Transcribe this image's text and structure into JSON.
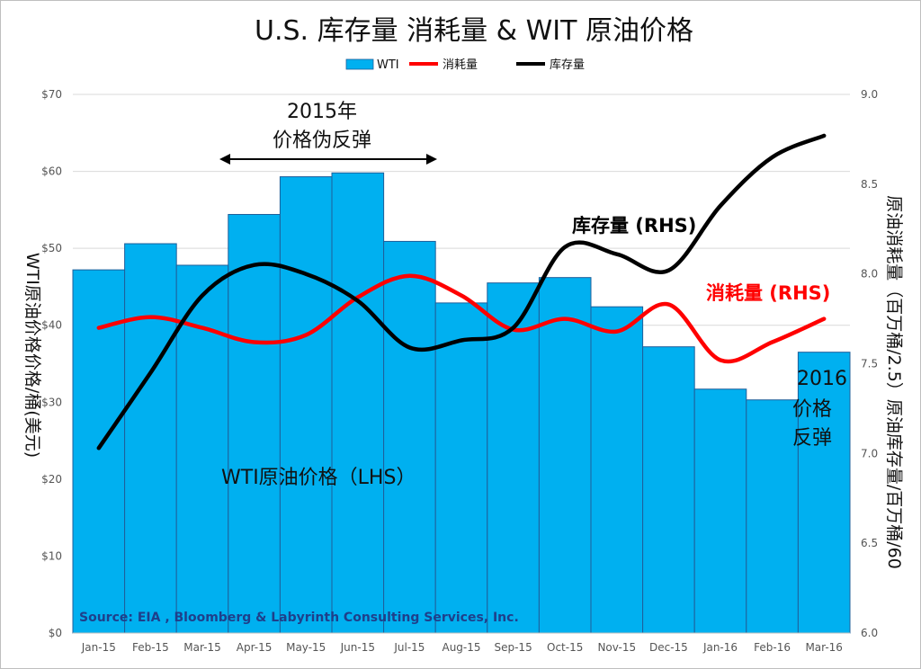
{
  "chart_data": {
    "type": "bar",
    "title": "U.S. 库存量   消耗量  & WIT 原油价格",
    "categories": [
      "Jan-15",
      "Feb-15",
      "Mar-15",
      "Apr-15",
      "May-15",
      "Jun-15",
      "Jul-15",
      "Aug-15",
      "Sep-15",
      "Oct-15",
      "Nov-15",
      "Dec-15",
      "Jan-16",
      "Feb-16",
      "Mar-16"
    ],
    "legend": {
      "placement": "top-center",
      "items": [
        {
          "label": "WTI",
          "color": "#00b0f0",
          "kind": "bar"
        },
        {
          "label": "消耗量",
          "color": "#ff0000",
          "kind": "line"
        },
        {
          "label": "库存量",
          "color": "#000000",
          "kind": "line"
        }
      ]
    },
    "y_left": {
      "label": "WTI原油价格价格/桶(美元)",
      "range": [
        0,
        70
      ],
      "ticks": [
        "$0",
        "$10",
        "$20",
        "$30",
        "$40",
        "$50",
        "$60",
        "$70"
      ]
    },
    "y_right": {
      "label": "原油消耗量（百万桶/2.5）原油库存量/百万桶/60",
      "range": [
        6.0,
        9.0
      ],
      "ticks": [
        "6.0",
        "6.5",
        "7.0",
        "7.5",
        "8.0",
        "8.5",
        "9.0"
      ]
    },
    "grid": true,
    "series": [
      {
        "name": "WTI",
        "axis": "left",
        "type": "bar",
        "color": "#00b0f0",
        "values": [
          47.2,
          50.6,
          47.8,
          54.4,
          59.3,
          59.8,
          50.9,
          42.9,
          45.5,
          46.2,
          42.4,
          37.2,
          31.7,
          30.3,
          36.5
        ]
      },
      {
        "name": "消耗量",
        "axis": "right",
        "type": "line",
        "color": "#ff0000",
        "values": [
          7.7,
          7.76,
          7.7,
          7.62,
          7.66,
          7.87,
          7.99,
          7.88,
          7.69,
          7.75,
          7.68,
          7.83,
          7.52,
          7.62,
          7.75
        ]
      },
      {
        "name": "库存量",
        "axis": "right",
        "type": "line",
        "color": "#000000",
        "values": [
          7.03,
          7.45,
          7.88,
          8.05,
          8.0,
          7.85,
          7.59,
          7.63,
          7.7,
          8.15,
          8.11,
          8.02,
          8.38,
          8.65,
          8.77
        ]
      }
    ],
    "annotations": {
      "pseudo_rebound_year": "2015年",
      "pseudo_rebound_text": "价格伪反弹",
      "inventory_label": "库存量 (RHS)",
      "consumption_label": "消耗量 (RHS)",
      "wti_label": "WTI原油价格（LHS）",
      "rebound_2016_year": "2016",
      "rebound_2016_line2": "价格",
      "rebound_2016_line3": "反弹",
      "source": "Source: EIA , Bloomberg & Labyrinth Consulting Services, Inc."
    }
  }
}
